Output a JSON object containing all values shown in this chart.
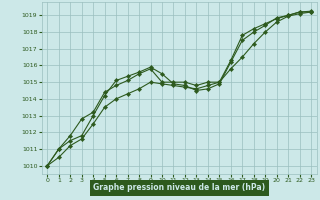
{
  "bg_color": "#cce8e8",
  "line_color": "#2d5a1e",
  "grid_color": "#9bbfbf",
  "xlabel": "Graphe pression niveau de la mer (hPa)",
  "xlabel_bg": "#2d5a1e",
  "xlabel_fg": "#cce8e8",
  "ylim": [
    1009.5,
    1019.8
  ],
  "xlim": [
    -0.5,
    23.5
  ],
  "yticks": [
    1010,
    1011,
    1012,
    1013,
    1014,
    1015,
    1016,
    1017,
    1018,
    1019
  ],
  "xticks": [
    0,
    1,
    2,
    3,
    4,
    5,
    6,
    7,
    8,
    9,
    10,
    11,
    12,
    13,
    14,
    15,
    16,
    17,
    18,
    19,
    20,
    21,
    22,
    23
  ],
  "series1": {
    "x": [
      0,
      1,
      2,
      3,
      4,
      5,
      6,
      7,
      8,
      9,
      10,
      11,
      12,
      13,
      14,
      15,
      16,
      17,
      18,
      19,
      20,
      21,
      22,
      23
    ],
    "y": [
      1010.0,
      1011.0,
      1011.8,
      1012.8,
      1013.2,
      1014.4,
      1014.8,
      1015.1,
      1015.5,
      1015.8,
      1015.0,
      1015.0,
      1015.0,
      1014.8,
      1015.0,
      1015.0,
      1016.3,
      1017.8,
      1018.2,
      1018.5,
      1018.8,
      1019.0,
      1019.2,
      1019.2
    ]
  },
  "series2": {
    "x": [
      0,
      1,
      2,
      3,
      4,
      5,
      6,
      7,
      8,
      9,
      10,
      11,
      12,
      13,
      14,
      15,
      16,
      17,
      18,
      19,
      20,
      21,
      22,
      23
    ],
    "y": [
      1010.0,
      1011.0,
      1011.5,
      1011.8,
      1013.0,
      1014.2,
      1015.1,
      1015.35,
      1015.6,
      1015.9,
      1015.5,
      1014.9,
      1014.8,
      1014.5,
      1014.6,
      1014.9,
      1016.2,
      1017.5,
      1018.0,
      1018.4,
      1018.85,
      1019.0,
      1019.2,
      1019.25
    ]
  },
  "series3": {
    "x": [
      0,
      1,
      2,
      3,
      4,
      5,
      6,
      7,
      8,
      9,
      10,
      11,
      12,
      13,
      14,
      15,
      16,
      17,
      18,
      19,
      20,
      21,
      22,
      23
    ],
    "y": [
      1010.0,
      1010.5,
      1011.2,
      1011.6,
      1012.5,
      1013.5,
      1014.0,
      1014.3,
      1014.6,
      1015.0,
      1014.9,
      1014.8,
      1014.7,
      1014.6,
      1014.8,
      1015.0,
      1015.8,
      1016.5,
      1017.3,
      1018.0,
      1018.6,
      1018.95,
      1019.1,
      1019.2
    ]
  }
}
